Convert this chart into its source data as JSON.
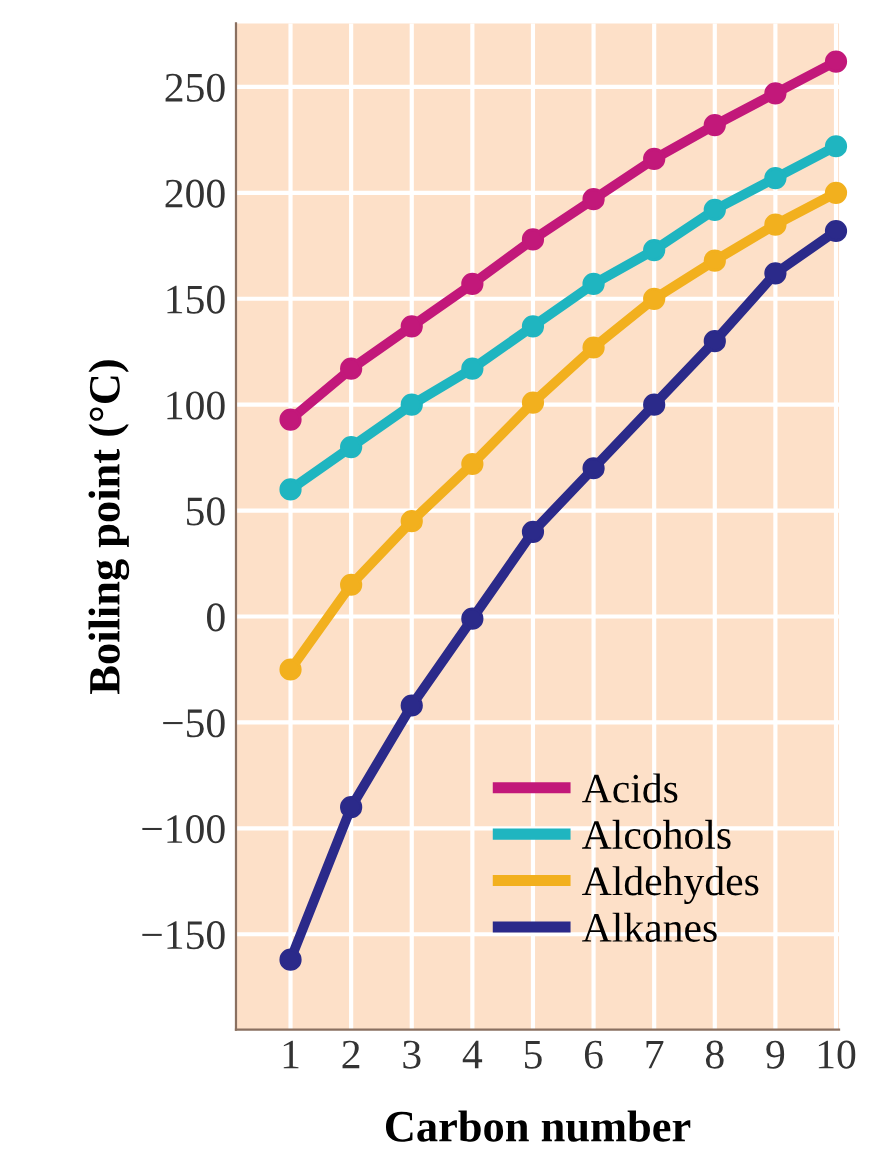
{
  "chart_data": {
    "type": "line",
    "xlabel": "Carbon number",
    "ylabel": "Boiling point (°C)",
    "x": [
      1,
      2,
      3,
      4,
      5,
      6,
      7,
      8,
      9,
      10
    ],
    "series": [
      {
        "name": "Acids",
        "color": "#c2187a",
        "values": [
          93,
          117,
          137,
          157,
          178,
          197,
          216,
          232,
          247,
          262
        ]
      },
      {
        "name": "Alcohols",
        "color": "#1fb5c0",
        "values": [
          60,
          80,
          100,
          117,
          137,
          157,
          173,
          192,
          207,
          222
        ]
      },
      {
        "name": "Aldehydes",
        "color": "#f2b01e",
        "values": [
          -25,
          15,
          45,
          72,
          101,
          127,
          150,
          168,
          185,
          200
        ]
      },
      {
        "name": "Alkanes",
        "color": "#2b2a8a",
        "values": [
          -162,
          -90,
          -42,
          -1,
          40,
          70,
          100,
          130,
          162,
          182
        ]
      }
    ],
    "xlim": [
      0.1,
      10.05
    ],
    "ylim": [
      -195,
      280
    ],
    "xticks": [
      1,
      2,
      3,
      4,
      5,
      6,
      7,
      8,
      9,
      10
    ],
    "yticks": [
      {
        "value": -150,
        "label": "−150"
      },
      {
        "value": -100,
        "label": "−100"
      },
      {
        "value": -50,
        "label": "−50"
      },
      0,
      50,
      100,
      150,
      200,
      250
    ],
    "grid": true,
    "legend": "bottom right",
    "marker": "circle",
    "line_style": "solid"
  }
}
